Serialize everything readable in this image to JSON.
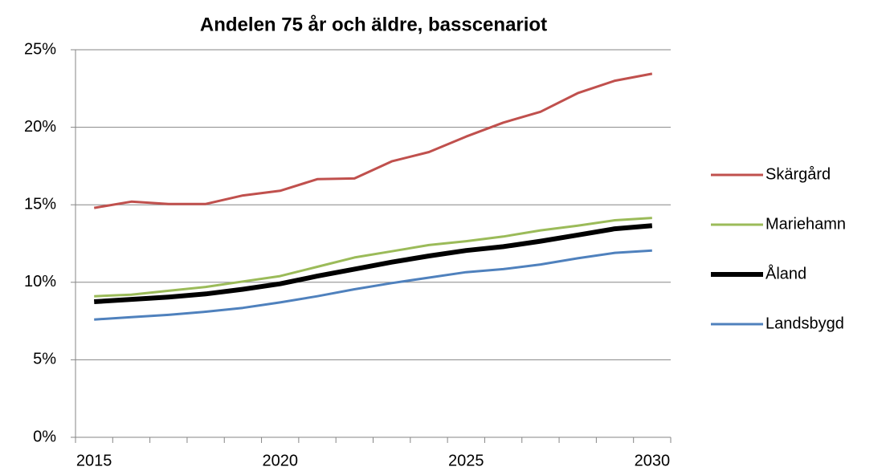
{
  "chart_data": {
    "type": "line",
    "title": "Andelen 75 år och äldre, basscenariot",
    "categories": [
      "2015",
      null,
      null,
      null,
      null,
      "2020",
      null,
      null,
      null,
      null,
      "2025",
      null,
      null,
      null,
      null,
      "2030"
    ],
    "series": [
      {
        "name": "Skärgård",
        "color": "#c0504d",
        "values": [
          14.8,
          15.2,
          15.05,
          15.05,
          15.6,
          15.9,
          16.65,
          16.7,
          17.8,
          18.4,
          19.4,
          20.3,
          21.0,
          22.2,
          23.0,
          23.45
        ]
      },
      {
        "name": "Mariehamn",
        "color": "#9bbb59",
        "values": [
          9.1,
          9.2,
          9.45,
          9.7,
          10.05,
          10.4,
          11.0,
          11.6,
          12.0,
          12.4,
          12.65,
          12.95,
          13.35,
          13.65,
          14.0,
          14.15
        ]
      },
      {
        "name": "Åland",
        "color": "#000000",
        "values": [
          8.75,
          8.9,
          9.05,
          9.25,
          9.55,
          9.9,
          10.4,
          10.85,
          11.3,
          11.7,
          12.05,
          12.3,
          12.65,
          13.05,
          13.45,
          13.65
        ]
      },
      {
        "name": "Landsbygd",
        "color": "#4f81bd",
        "values": [
          7.6,
          7.75,
          7.9,
          8.1,
          8.35,
          8.7,
          9.1,
          9.55,
          9.95,
          10.3,
          10.65,
          10.85,
          11.15,
          11.55,
          11.9,
          12.05
        ]
      }
    ],
    "ylim": [
      0,
      25
    ],
    "yticks": [
      {
        "value": 0,
        "label": "0%"
      },
      {
        "value": 5,
        "label": "5%"
      },
      {
        "value": 10,
        "label": "10%"
      },
      {
        "value": 15,
        "label": "15%"
      },
      {
        "value": 20,
        "label": "20%"
      },
      {
        "value": 25,
        "label": "25%"
      }
    ],
    "grid": true,
    "legend": "right"
  }
}
